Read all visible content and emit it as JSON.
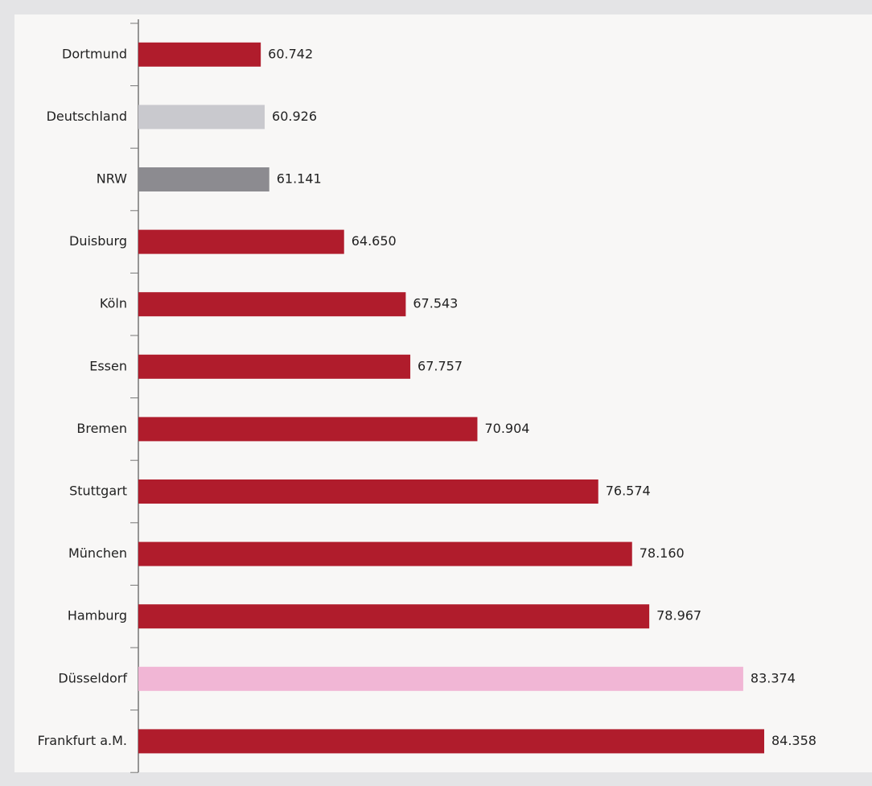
{
  "chart_data": {
    "type": "bar",
    "orientation": "horizontal",
    "categories": [
      "Dortmund",
      "Deutschland",
      "NRW",
      "Duisburg",
      "Köln",
      "Essen",
      "Bremen",
      "Stuttgart",
      "München",
      "Hamburg",
      "Düsseldorf",
      "Frankfurt a.M."
    ],
    "values": [
      60742,
      60926,
      61141,
      64650,
      67543,
      67757,
      70904,
      76574,
      78160,
      78967,
      83374,
      84358
    ],
    "value_labels": [
      "60.742",
      "60.926",
      "61.141",
      "64.650",
      "67.543",
      "67.757",
      "70.904",
      "76.574",
      "78.160",
      "78.967",
      "83.374",
      "84.358"
    ],
    "colors": [
      "#b01c2c",
      "#c9c9ce",
      "#8c8b90",
      "#b01c2c",
      "#b01c2c",
      "#b01c2c",
      "#b01c2c",
      "#b01c2c",
      "#b01c2c",
      "#b01c2c",
      "#f1b6d5",
      "#b01c2c"
    ],
    "xlim": [
      55000,
      85000
    ]
  }
}
